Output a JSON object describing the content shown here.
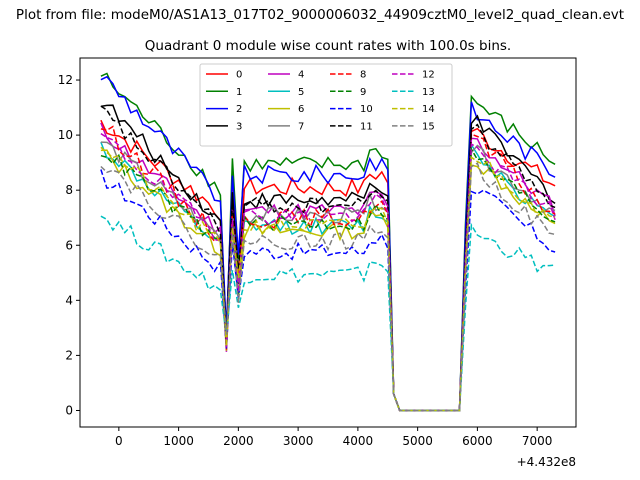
{
  "suptitle": "Plot from file: modeM0/AS1A13_017T02_9000006032_44909cztM0_level2_quad_clean.evt",
  "chart_data": {
    "type": "line",
    "title": "Quadrant 0 module wise count rates with 100.0s bins.",
    "xlabel": "",
    "ylabel": "",
    "x_offset_label": "+4.432e8",
    "xlim": [
      -650,
      7650
    ],
    "ylim": [
      -0.6,
      12.8
    ],
    "xticks": [
      0,
      1000,
      2000,
      3000,
      4000,
      5000,
      6000,
      7000
    ],
    "yticks": [
      0,
      2,
      4,
      6,
      8,
      10,
      12
    ],
    "legend_position": "top-center",
    "legend_ncols": 4,
    "series": [
      {
        "name": "0",
        "color": "#ff0000",
        "dash": "solid",
        "level": 8.7,
        "start": 10.5,
        "end": 10.2,
        "noise": 0.35
      },
      {
        "name": "1",
        "color": "#008000",
        "dash": "solid",
        "level": 9.6,
        "start": 12.2,
        "end": 11.3,
        "noise": 0.3
      },
      {
        "name": "2",
        "color": "#0000ff",
        "dash": "solid",
        "level": 9.2,
        "start": 12.2,
        "end": 10.9,
        "noise": 0.35
      },
      {
        "name": "3",
        "color": "#000000",
        "dash": "solid",
        "level": 8.2,
        "start": 11.3,
        "end": 10.6,
        "noise": 0.3
      },
      {
        "name": "4",
        "color": "#bf00bf",
        "dash": "solid",
        "level": 7.8,
        "start": 10.2,
        "end": 9.9,
        "noise": 0.3
      },
      {
        "name": "5",
        "color": "#00bfbf",
        "dash": "solid",
        "level": 7.2,
        "start": 9.6,
        "end": 9.5,
        "noise": 0.3
      },
      {
        "name": "6",
        "color": "#bfbf00",
        "dash": "solid",
        "level": 7.0,
        "start": 9.4,
        "end": 9.2,
        "noise": 0.3
      },
      {
        "name": "7",
        "color": "#808080",
        "dash": "solid",
        "level": 7.6,
        "start": 9.8,
        "end": 9.5,
        "noise": 0.3
      },
      {
        "name": "8",
        "color": "#ff0000",
        "dash": "dashed",
        "level": 7.5,
        "start": 10.4,
        "end": 10.0,
        "noise": 0.35
      },
      {
        "name": "9",
        "color": "#008000",
        "dash": "dashed",
        "level": 7.3,
        "start": 9.5,
        "end": 9.3,
        "noise": 0.3
      },
      {
        "name": "10",
        "color": "#0000ff",
        "dash": "dashed",
        "level": 6.2,
        "start": 8.5,
        "end": 8.2,
        "noise": 0.3
      },
      {
        "name": "11",
        "color": "#000000",
        "dash": "dashed",
        "level": 8.0,
        "start": 10.9,
        "end": 10.3,
        "noise": 0.3
      },
      {
        "name": "12",
        "color": "#bf00bf",
        "dash": "dashed",
        "level": 7.6,
        "start": 10.0,
        "end": 9.6,
        "noise": 0.3
      },
      {
        "name": "13",
        "color": "#00bfbf",
        "dash": "dashed",
        "level": 5.3,
        "start": 7.1,
        "end": 6.5,
        "noise": 0.3
      },
      {
        "name": "14",
        "color": "#bfbf00",
        "dash": "dashed",
        "level": 7.2,
        "start": 9.7,
        "end": 9.4,
        "noise": 0.3
      },
      {
        "name": "15",
        "color": "#808080",
        "dash": "dashed",
        "level": 6.6,
        "start": 9.1,
        "end": 8.9,
        "noise": 0.3
      }
    ],
    "segments": {
      "x_start": -300,
      "x_end": 7350,
      "step": 100,
      "dip1_center": 1850,
      "dip1_value": 2.5,
      "peak_after_dip1": 1950,
      "dip2_center": 2050,
      "dip2_value": 4.5,
      "drop_start": 4450,
      "drop_mid": 4550,
      "zero_start": 4650,
      "zero_end": 5750,
      "rise_end": 5900,
      "tail_drop": 7350
    }
  }
}
